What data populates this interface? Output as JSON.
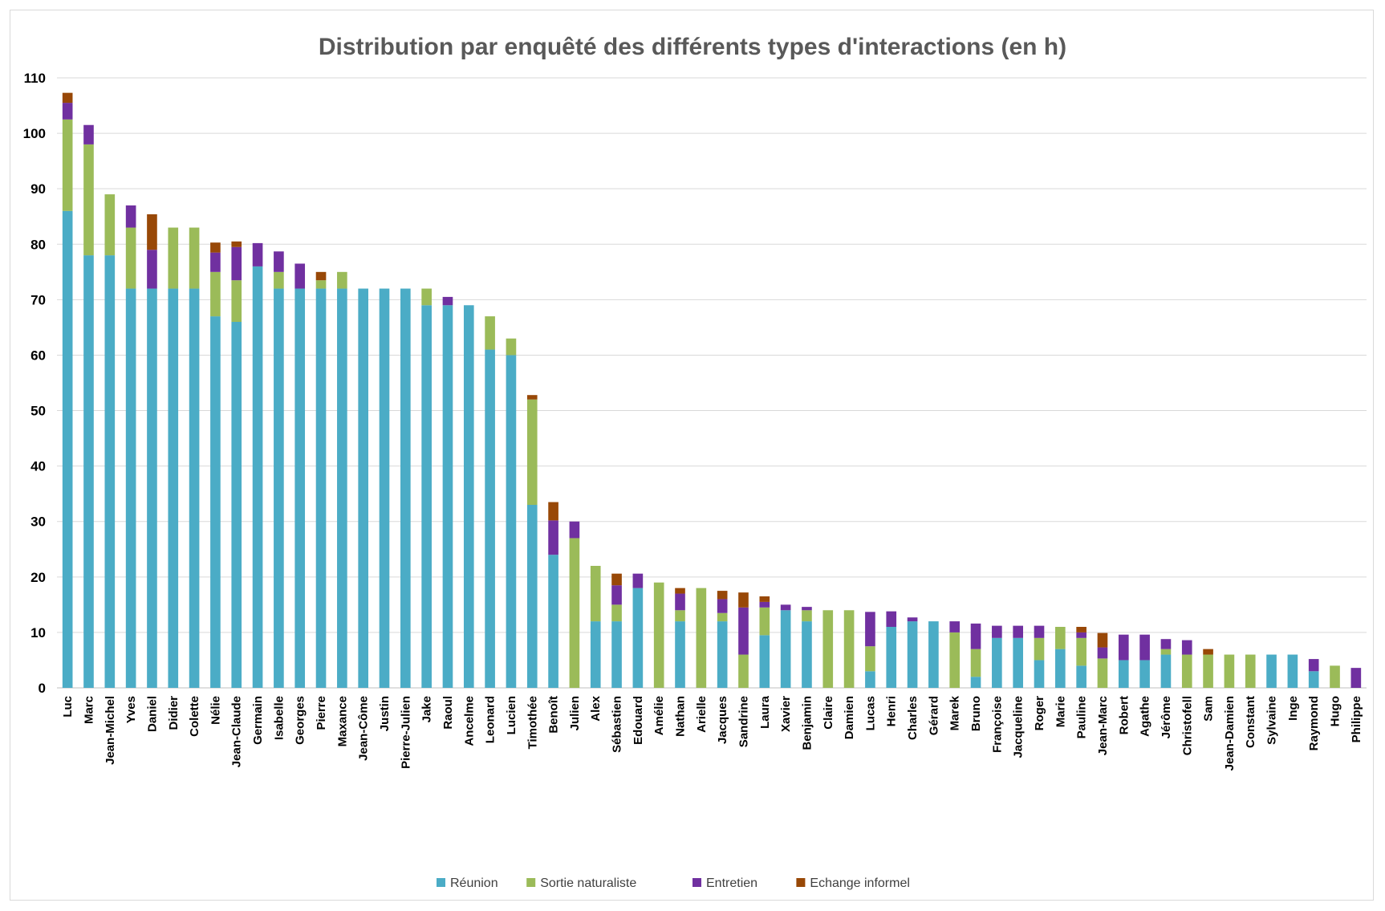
{
  "chart_data": {
    "type": "bar",
    "stacked": true,
    "title": "Distribution par enquêté des différents types d'interactions (en h)",
    "xlabel": "",
    "ylabel": "",
    "ylim": [
      0,
      110
    ],
    "yticks": [
      "0",
      "10",
      "20",
      "30",
      "40",
      "50",
      "60",
      "70",
      "80",
      "90",
      "100",
      "110"
    ],
    "grid": true,
    "legend_position": "bottom",
    "categories": [
      "Luc",
      "Marc",
      "Jean-Michel",
      "Yves",
      "Daniel",
      "Didier",
      "Colette",
      "Nélie",
      "Jean-Claude",
      "Germain",
      "Isabelle",
      "Georges",
      "Pierre",
      "Maxance",
      "Jean-Côme",
      "Justin",
      "Pierre-Julien",
      "Jake",
      "Raoul",
      "Ancelme",
      "Leonard",
      "Lucien",
      "Timothée",
      "Benoît",
      "Julien",
      "Alex",
      "Sébastien",
      "Edouard",
      "Amélie",
      "Nathan",
      "Arielle",
      "Jacques",
      "Sandrine",
      "Laura",
      "Xavier",
      "Benjamin",
      "Claire",
      "Damien",
      "Lucas",
      "Henri",
      "Charles",
      "Gérard",
      "Marek",
      "Bruno",
      "Françoise",
      "Jacqueline",
      "Roger",
      "Marie",
      "Pauline",
      "Jean-Marc",
      "Robert",
      "Agathe",
      "Jérôme",
      "Christofell",
      "Sam",
      "Jean-Damien",
      "Constant",
      "Sylvaine",
      "Inge",
      "Raymond",
      "Hugo",
      "Philippe"
    ],
    "series": [
      {
        "name": "Réunion",
        "color": "#4bacc6",
        "values": [
          86,
          78,
          78,
          72,
          72,
          72,
          72,
          67,
          66,
          76,
          72,
          72,
          72,
          72,
          72,
          72,
          72,
          69,
          69,
          69,
          61,
          60,
          33,
          24,
          0,
          12,
          12,
          18,
          0,
          12,
          0,
          12,
          0,
          9.5,
          14,
          12,
          0,
          0,
          3,
          11,
          12,
          12,
          0,
          2,
          9,
          9,
          5,
          7,
          4,
          0,
          5,
          5,
          6,
          0,
          0,
          0,
          0,
          6,
          6,
          3,
          0,
          0
        ]
      },
      {
        "name": "Sortie naturaliste",
        "color": "#9bbb59",
        "values": [
          16.5,
          20,
          11,
          11,
          0,
          11,
          11,
          8,
          7.5,
          0,
          3,
          0,
          1.5,
          3,
          0,
          0,
          0,
          3,
          0,
          0,
          6,
          3,
          19,
          0,
          27,
          10,
          3,
          0,
          19,
          2,
          18,
          1.5,
          6,
          5,
          0,
          2,
          14,
          14,
          4.5,
          0,
          0,
          0,
          10,
          5,
          0,
          0,
          4,
          4,
          5,
          5.3,
          0,
          0,
          1,
          6,
          6,
          6,
          6,
          0,
          0,
          0,
          4,
          0
        ]
      },
      {
        "name": "Entretien",
        "color": "#7030a0",
        "values": [
          3,
          3.5,
          0,
          4,
          7,
          0,
          0,
          3.5,
          6,
          4.2,
          3.7,
          4.5,
          0,
          0,
          0,
          0,
          0,
          0,
          1.5,
          0,
          0,
          0,
          0,
          6.2,
          3,
          0,
          3.5,
          2.6,
          0,
          3,
          0,
          2.5,
          8.5,
          1,
          1,
          0.6,
          0,
          0,
          6.2,
          2.8,
          0.7,
          0,
          2,
          4.6,
          2.2,
          2.2,
          2.2,
          0,
          1,
          2,
          4.6,
          4.6,
          1.8,
          2.6,
          0,
          0,
          0,
          0,
          0,
          2.2,
          0,
          3.6
        ]
      },
      {
        "name": "Echange informel",
        "color": "#984807",
        "values": [
          1.8,
          0,
          0,
          0,
          6.4,
          0,
          0,
          1.8,
          1,
          0,
          0,
          0,
          1.5,
          0,
          0,
          0,
          0,
          0,
          0,
          0,
          0,
          0,
          0.8,
          3.3,
          0,
          0,
          2.1,
          0,
          0,
          1,
          0,
          1.5,
          2.7,
          1,
          0,
          0,
          0,
          0,
          0,
          0,
          0,
          0,
          0,
          0,
          0,
          0,
          0,
          0,
          1,
          2.6,
          0,
          0,
          0,
          0,
          1,
          0,
          0,
          0,
          0,
          0,
          0,
          0
        ]
      }
    ]
  }
}
